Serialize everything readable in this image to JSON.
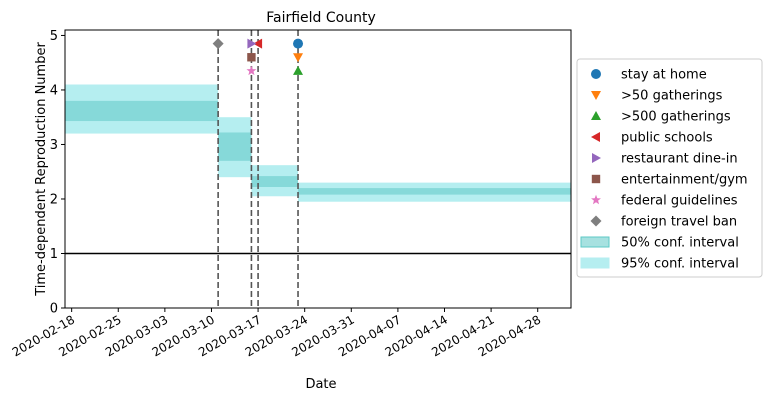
{
  "chart_data": {
    "type": "line",
    "title": "Fairfield County",
    "xlabel": "Date",
    "ylabel": "Time-dependent Reproduction Number",
    "ylim": [
      0,
      5.1
    ],
    "xlim": [
      "2020-02-17",
      "2020-05-03"
    ],
    "yticks": [
      0,
      1,
      2,
      3,
      4,
      5
    ],
    "xticks": [
      "2020-02-18",
      "2020-02-25",
      "2020-03-03",
      "2020-03-10",
      "2020-03-17",
      "2020-03-24",
      "2020-03-31",
      "2020-04-07",
      "2020-04-14",
      "2020-04-21",
      "2020-04-28"
    ],
    "reference_line": 1,
    "grid": false,
    "legend_position": "right, outside",
    "colors": {
      "ci50": "#5ec9c6",
      "ci95": "#b5eef0",
      "reference": "#000000",
      "vline": "#555555"
    },
    "ci_bands": [
      {
        "start": "2020-02-17",
        "end": "2020-03-11",
        "ci50": [
          3.43,
          3.8
        ],
        "ci95": [
          3.2,
          4.1
        ]
      },
      {
        "start": "2020-03-11",
        "end": "2020-03-16",
        "ci50": [
          2.7,
          3.22
        ],
        "ci95": [
          2.4,
          3.5
        ]
      },
      {
        "start": "2020-03-16",
        "end": "2020-03-23",
        "ci50": [
          2.22,
          2.42
        ],
        "ci95": [
          2.05,
          2.62
        ]
      },
      {
        "start": "2020-03-23",
        "end": "2020-05-03",
        "ci50": [
          2.08,
          2.2
        ],
        "ci95": [
          1.95,
          2.3
        ]
      }
    ],
    "intervention_lines": [
      "2020-03-11",
      "2020-03-16",
      "2020-03-17",
      "2020-03-23"
    ],
    "series": [
      {
        "name": "stay at home",
        "marker": "circle",
        "color": "#1f77b4",
        "x": "2020-03-23",
        "y": 4.85
      },
      {
        "name": ">50 gatherings",
        "marker": "triangle-down",
        "color": "#ff7f0e",
        "x": "2020-03-23",
        "y": 4.6
      },
      {
        "name": ">500 gatherings",
        "marker": "triangle-up",
        "color": "#2ca02c",
        "x": "2020-03-23",
        "y": 4.35
      },
      {
        "name": "public schools",
        "marker": "triangle-left",
        "color": "#d62728",
        "x": "2020-03-17",
        "y": 4.85
      },
      {
        "name": "restaurant dine-in",
        "marker": "triangle-right",
        "color": "#9467bd",
        "x": "2020-03-16",
        "y": 4.85
      },
      {
        "name": "entertainment/gym",
        "marker": "square",
        "color": "#8c564b",
        "x": "2020-03-16",
        "y": 4.6
      },
      {
        "name": "federal guidelines",
        "marker": "star",
        "color": "#e377c2",
        "x": "2020-03-16",
        "y": 4.35
      },
      {
        "name": "foreign travel ban",
        "marker": "diamond",
        "color": "#7f7f7f",
        "x": "2020-03-11",
        "y": 4.85
      }
    ],
    "legend_bands": [
      {
        "name": "50% conf. interval",
        "key": "ci50"
      },
      {
        "name": "95% conf. interval",
        "key": "ci95"
      }
    ]
  }
}
